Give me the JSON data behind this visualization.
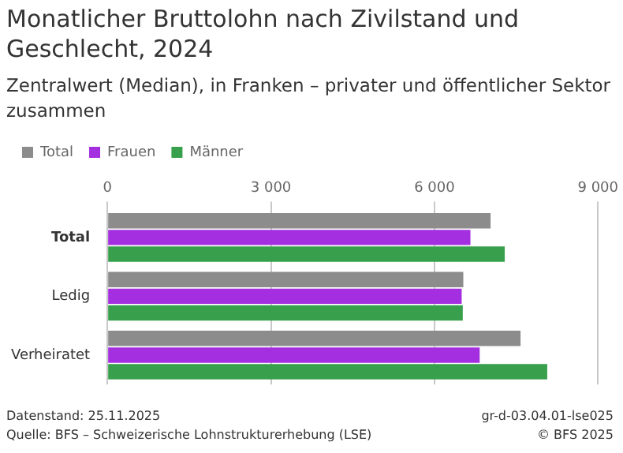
{
  "chart_data": {
    "type": "bar",
    "orientation": "horizontal",
    "title": "Monatlicher Bruttolohn nach Zivilstand und Geschlecht, 2024",
    "subtitle": "Zentralwert (Median), in Franken – privater und öffentlicher Sektor zusammen",
    "categories": [
      "Total",
      "Ledig",
      "Verheiratet"
    ],
    "series": [
      {
        "name": "Total",
        "color": "#8c8c8c",
        "values": [
          7030,
          6530,
          7580
        ]
      },
      {
        "name": "Frauen",
        "color": "#a32fe0",
        "values": [
          6660,
          6500,
          6830
        ]
      },
      {
        "name": "Männer",
        "color": "#38a04c",
        "values": [
          7290,
          6520,
          8070
        ]
      }
    ],
    "xlim": [
      0,
      9000
    ],
    "xticks": [
      0,
      {
        "value": 3000,
        "label": "3 000"
      },
      {
        "value": 6000,
        "label": "6 000"
      },
      {
        "value": 9000,
        "label": "9 000"
      }
    ],
    "grid": "x",
    "legend": "top left",
    "annotations": [
      "Datenstand: 25.11.2025",
      "gr-d-03.04.01-lse025",
      "Quelle: BFS – Schweizerische Lohnstrukturerhebung (LSE)",
      "© BFS 2025"
    ]
  }
}
